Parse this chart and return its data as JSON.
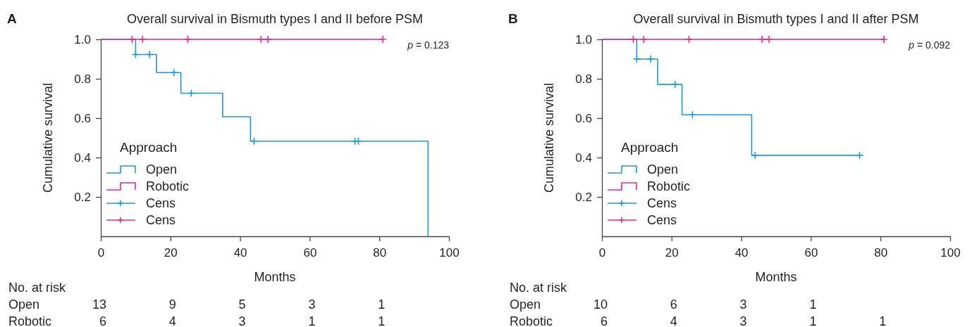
{
  "chart_data": [
    {
      "type": "step",
      "title": "Overall survival in Bismuth types I and II before PSM",
      "xlabel": "Months",
      "ylabel": "Cumulative survival",
      "legend_title": "Approach",
      "legend": "bottom left",
      "xlim": [
        0,
        100
      ],
      "xticks": [
        0,
        20,
        40,
        60,
        80,
        100
      ],
      "ylim": [
        0,
        1
      ],
      "yticks": [
        0.2,
        0.4,
        0.6,
        0.8,
        {
          "value": 1,
          "label": "1.0"
        }
      ],
      "series": [
        {
          "name": "Open",
          "color": "#1a9ad6",
          "x": [
            0,
            10,
            16,
            23,
            35,
            43,
            94
          ],
          "values": [
            1,
            0.923,
            0.831,
            0.727,
            0.607,
            0.483,
            0
          ]
        },
        {
          "name": "Robotic",
          "color": "#e6288e",
          "x": [
            0,
            81
          ],
          "values": [
            1,
            1
          ]
        },
        {
          "name": "Cens",
          "type": "scatter",
          "marker": "cross",
          "color": "#1a9ad6",
          "x": [
            10,
            14,
            21,
            26,
            44,
            73,
            74
          ],
          "values": [
            0.923,
            0.923,
            0.831,
            0.727,
            0.483,
            0.483,
            0.483
          ]
        },
        {
          "name": "Cens",
          "type": "scatter",
          "marker": "cross",
          "color": "#e6288e",
          "x": [
            9,
            12,
            25,
            46,
            48,
            81
          ],
          "values": [
            1,
            1,
            1,
            1,
            1,
            1
          ]
        }
      ],
      "annotations": [
        "A",
        "p = 0.123",
        "No. at risk",
        "Open",
        [
          "13",
          "9",
          "5",
          "3",
          "1"
        ],
        "Robotic",
        [
          "6",
          "4",
          "3",
          "1",
          "1"
        ]
      ]
    },
    {
      "type": "step",
      "title": "Overall survival in Bismuth types I and II after PSM",
      "xlabel": "Months",
      "ylabel": "Cumulative survival",
      "legend_title": "Approach",
      "legend": "bottom left",
      "xlim": [
        0,
        100
      ],
      "xticks": [
        0,
        20,
        40,
        60,
        80,
        100
      ],
      "ylim": [
        0,
        1
      ],
      "yticks": [
        0.2,
        0.4,
        0.6,
        0.8,
        {
          "value": 1,
          "label": "1.0"
        }
      ],
      "series": [
        {
          "name": "Open",
          "color": "#1a9ad6",
          "x": [
            0,
            10,
            16,
            23,
            43,
            74
          ],
          "values": [
            1,
            0.9,
            0.771,
            0.617,
            0.411,
            0.411
          ]
        },
        {
          "name": "Robotic",
          "color": "#e6288e",
          "x": [
            0,
            81
          ],
          "values": [
            1,
            1
          ]
        },
        {
          "name": "Cens",
          "type": "scatter",
          "marker": "cross",
          "color": "#1a9ad6",
          "x": [
            10,
            14,
            21,
            26,
            44,
            74
          ],
          "values": [
            0.9,
            0.9,
            0.771,
            0.617,
            0.411,
            0.411
          ]
        },
        {
          "name": "Cens",
          "type": "scatter",
          "marker": "cross",
          "color": "#e6288e",
          "x": [
            9,
            12,
            25,
            46,
            48,
            81
          ],
          "values": [
            1,
            1,
            1,
            1,
            1,
            1
          ]
        }
      ],
      "annotations": [
        "B",
        "p = 0.092",
        "No. at risk",
        "Open",
        [
          "10",
          "6",
          "3",
          "1"
        ],
        "Robotic",
        [
          "6",
          "4",
          "3",
          "1",
          "1"
        ]
      ]
    }
  ]
}
